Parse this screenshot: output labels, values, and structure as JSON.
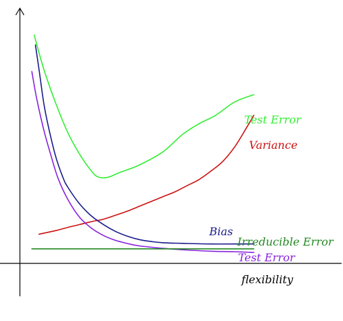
{
  "chart_data": {
    "type": "line",
    "xlabel": "flexibility",
    "ylabel": "",
    "xlim": [
      0,
      10
    ],
    "ylim": [
      0,
      10
    ],
    "grid": false,
    "axis_color": "#000000",
    "series": [
      {
        "name": "Test Error",
        "color": "#33ee33",
        "x": [
          0.6,
          1.0,
          1.5,
          2.0,
          2.5,
          3.0,
          3.3,
          3.7,
          4.2,
          5.0,
          6.0,
          6.8,
          7.5,
          8.2,
          9.0,
          9.8
        ],
        "y": [
          9.4,
          8.0,
          6.6,
          5.4,
          4.5,
          3.8,
          3.55,
          3.55,
          3.75,
          4.05,
          4.6,
          5.3,
          5.75,
          6.1,
          6.65,
          6.95
        ]
      },
      {
        "name": "Variance",
        "color": "#cc1111",
        "x": [
          0.8,
          1.5,
          2.0,
          2.5,
          3.0,
          3.5,
          4.0,
          4.5,
          5.0,
          5.5,
          6.0,
          6.5,
          7.0,
          7.5,
          8.0,
          8.5,
          9.0,
          9.5,
          9.8
        ],
        "y": [
          1.2,
          1.35,
          1.48,
          1.6,
          1.72,
          1.82,
          1.98,
          2.15,
          2.35,
          2.55,
          2.75,
          2.95,
          3.2,
          3.45,
          3.8,
          4.2,
          4.8,
          5.6,
          6.1
        ]
      },
      {
        "name": "Bias",
        "color": "#1a1a8c",
        "x": [
          0.65,
          0.8,
          1.0,
          1.2,
          1.5,
          1.8,
          2.0,
          2.5,
          3.0,
          3.5,
          4.0,
          4.5,
          5.0,
          5.5,
          6.0,
          7.0,
          8.0,
          9.0,
          9.8
        ],
        "y": [
          9.0,
          8.0,
          6.6,
          5.6,
          4.4,
          3.55,
          3.15,
          2.45,
          1.95,
          1.6,
          1.32,
          1.12,
          0.98,
          0.9,
          0.85,
          0.82,
          0.8,
          0.8,
          0.8
        ]
      },
      {
        "name": "Test Error",
        "color": "#8822dd",
        "x": [
          0.5,
          0.7,
          1.0,
          1.3,
          1.6,
          2.0,
          2.5,
          3.0,
          3.5,
          4.0,
          4.5,
          5.0,
          6.0,
          7.0,
          8.0,
          9.0,
          9.8
        ],
        "y": [
          7.9,
          6.8,
          5.5,
          4.45,
          3.5,
          2.65,
          1.9,
          1.45,
          1.15,
          0.95,
          0.82,
          0.72,
          0.62,
          0.55,
          0.5,
          0.48,
          0.45
        ]
      },
      {
        "name": "Irreducible Error",
        "color": "#228822",
        "x": [
          0.5,
          9.8
        ],
        "y": [
          0.6,
          0.6
        ]
      }
    ]
  }
}
